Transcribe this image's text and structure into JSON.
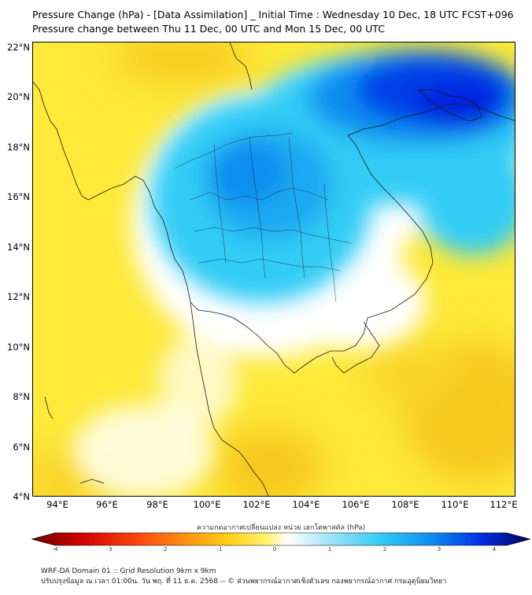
{
  "header": {
    "title_line1": "Pressure Change (hPa) - [Data Assimilation] _ Initial Time : Wednesday 10 Dec, 18 UTC FCST+096",
    "title_line2": "Pressure change between Thu 11 Dec, 00 UTC and Mon 15 Dec, 00 UTC"
  },
  "map": {
    "lat_labels": [
      "22°N",
      "20°N",
      "18°N",
      "16°N",
      "14°N",
      "12°N",
      "10°N",
      "8°N",
      "6°N",
      "4°N"
    ],
    "lon_labels": [
      "94°E",
      "96°E",
      "98°E",
      "100°E",
      "102°E",
      "104°E",
      "106°E",
      "108°E",
      "110°E",
      "112°E"
    ],
    "colors": {
      "base": "#fdea3a",
      "deep_yellow": "#f7c81c",
      "white": "#ffffff",
      "light_blue": "#33ccf5",
      "mid_blue": "#0b8ef0",
      "deep_blue": "#0022e0",
      "coast": "#1a1a1a"
    }
  },
  "colorbar": {
    "label": "ความกดอากาศเปลี่ยนแปลง หน่วย เฮกโตพาสคัล (hPa)",
    "ticks": [
      "-4",
      "-3",
      "-2",
      "-1",
      "0",
      "1",
      "2",
      "3",
      "4"
    ]
  },
  "footer": {
    "line1": "WRF-DA Domain 01 :: Grid Resolution 9km x 9km",
    "line2": "ปรับปรุงข้อมูล ณ เวลา 01:00น. วัน พฤ. ที่ 11 ธ.ค. 2568 -- © ส่วนพยากรณ์อากาศเชิงตัวเลข กองพยากรณ์อากาศ กรมอุตุนิยมวิทยา"
  }
}
